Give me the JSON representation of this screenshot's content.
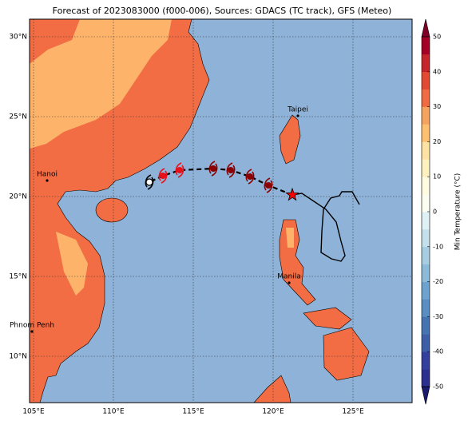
{
  "chart_data": {
    "type": "map",
    "title": "Forecast of 2023083000 (f000-006), Sources: GDACS (TC track), GFS (Meteo)",
    "xlim": [
      104.75,
      128.7
    ],
    "ylim": [
      7.1,
      31.1
    ],
    "xticks": [
      {
        "value": 105,
        "label": "105°E"
      },
      {
        "value": 110,
        "label": "110°E"
      },
      {
        "value": 115,
        "label": "115°E"
      },
      {
        "value": 120,
        "label": "120°E"
      },
      {
        "value": 125,
        "label": "125°E"
      }
    ],
    "yticks": [
      {
        "value": 10,
        "label": "10°N"
      },
      {
        "value": 15,
        "label": "15°N"
      },
      {
        "value": 20,
        "label": "20°N"
      },
      {
        "value": 25,
        "label": "25°N"
      },
      {
        "value": 30,
        "label": "30°N"
      }
    ],
    "grid": true,
    "forecast_track": {
      "lon": [
        121.2,
        119.7,
        118.55,
        117.35,
        116.25,
        114.15,
        113.1,
        112.25
      ],
      "lat": [
        20.1,
        20.7,
        21.25,
        21.65,
        21.75,
        21.65,
        21.3,
        20.9
      ],
      "colors": [
        "#ff0000",
        "#8b0000",
        "#8b0000",
        "#8b0000",
        "#8b0000",
        "#e8101a",
        "#e8101a",
        "#ffffff"
      ]
    },
    "past_track": {
      "lon": [
        121.2,
        121.8,
        122.55,
        123.3,
        123.95,
        124.25,
        124.5,
        124.25,
        123.65,
        123.0,
        123.05,
        123.15,
        123.6,
        124.15,
        124.3,
        124.95,
        125.4
      ],
      "lat": [
        20.1,
        20.2,
        19.7,
        19.2,
        18.4,
        17.2,
        16.3,
        15.95,
        16.1,
        16.5,
        17.8,
        19.2,
        19.9,
        20.05,
        20.3,
        20.3,
        19.5
      ]
    },
    "cities": [
      {
        "name": "Taipei",
        "lon": 121.55,
        "lat": 25.05
      },
      {
        "name": "Hanoi",
        "lon": 105.85,
        "lat": 21.0
      },
      {
        "name": "Manila",
        "lon": 121.0,
        "lat": 14.6
      },
      {
        "name": "Phnom Penh",
        "lon": 104.9,
        "lat": 11.55
      }
    ],
    "colorbar": {
      "label": "Min Temperature (°C)",
      "lim": [
        -50,
        50
      ],
      "ticks": [
        -50,
        -40,
        -30,
        -20,
        -10,
        0,
        10,
        20,
        30,
        40,
        50
      ],
      "colors": [
        "#2b2f8f",
        "#353f9e",
        "#3d5fa8",
        "#4674b3",
        "#5a8ec2",
        "#6fa3cf",
        "#8cbad9",
        "#a7cde3",
        "#c4e0ec",
        "#e0f1f6",
        "#fbfdf0",
        "#fffbe0",
        "#fff0c0",
        "#fee2a4",
        "#fdbf70",
        "#f4a460",
        "#f06a42",
        "#e34a33",
        "#c6262b",
        "#a50026"
      ]
    }
  }
}
